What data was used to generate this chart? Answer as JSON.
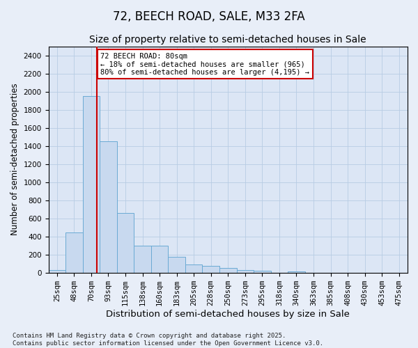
{
  "title": "72, BEECH ROAD, SALE, M33 2FA",
  "subtitle": "Size of property relative to semi-detached houses in Sale",
  "xlabel": "Distribution of semi-detached houses by size in Sale",
  "ylabel": "Number of semi-detached properties",
  "categories": [
    "25sqm",
    "48sqm",
    "70sqm",
    "93sqm",
    "115sqm",
    "138sqm",
    "160sqm",
    "183sqm",
    "205sqm",
    "228sqm",
    "250sqm",
    "273sqm",
    "295sqm",
    "318sqm",
    "340sqm",
    "363sqm",
    "385sqm",
    "408sqm",
    "430sqm",
    "453sqm",
    "475sqm"
  ],
  "values": [
    30,
    440,
    1950,
    1450,
    660,
    300,
    300,
    175,
    90,
    75,
    50,
    25,
    20,
    0,
    10,
    0,
    0,
    0,
    0,
    0,
    0
  ],
  "bar_color": "#c8d9ef",
  "bar_edge_color": "#6aaad4",
  "vline_color": "#cc0000",
  "annotation_text": "72 BEECH ROAD: 80sqm\n← 18% of semi-detached houses are smaller (965)\n80% of semi-detached houses are larger (4,195) →",
  "annotation_box_color": "#cc0000",
  "annotation_fill": "white",
  "ylim": [
    0,
    2500
  ],
  "yticks": [
    0,
    200,
    400,
    600,
    800,
    1000,
    1200,
    1400,
    1600,
    1800,
    2000,
    2200,
    2400
  ],
  "grid_color": "#b8cce4",
  "background_color": "#e8eef8",
  "plot_bg_color": "#dce6f5",
  "footer": "Contains HM Land Registry data © Crown copyright and database right 2025.\nContains public sector information licensed under the Open Government Licence v3.0.",
  "title_fontsize": 12,
  "subtitle_fontsize": 10,
  "xlabel_fontsize": 9.5,
  "ylabel_fontsize": 8.5,
  "tick_fontsize": 7.5,
  "footer_fontsize": 6.5
}
